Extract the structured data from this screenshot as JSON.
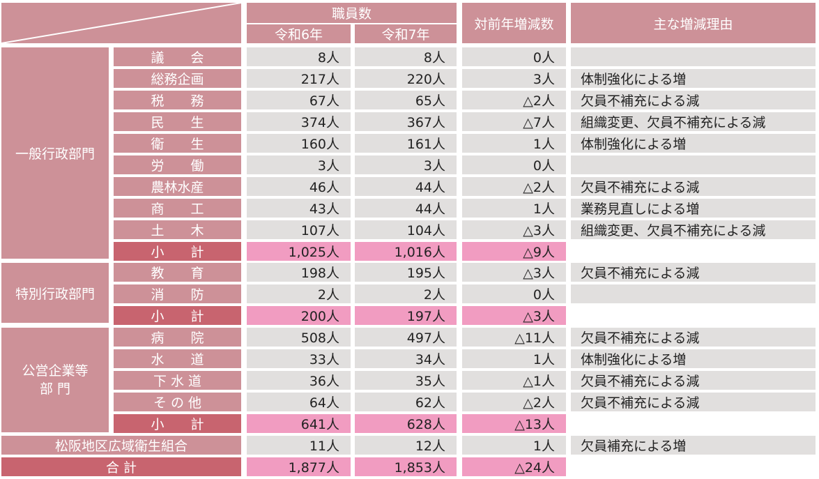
{
  "header": {
    "staff_count": "職員数",
    "r6": "令和6年",
    "r7": "令和7年",
    "diff": "対前年増減数",
    "reason": "主な増減理由"
  },
  "groups": {
    "general": "一般行政部門",
    "special": "特別行政部門",
    "enterprise_line1": "公営企業等",
    "enterprise_line2": "部 門"
  },
  "rows": [
    {
      "cat": "議　　会",
      "r6": "8人",
      "r7": "8人",
      "diff": "0人",
      "reason": ""
    },
    {
      "cat": "総務企画",
      "r6": "217人",
      "r7": "220人",
      "diff": "3人",
      "reason": "体制強化による増"
    },
    {
      "cat": "税　　務",
      "r6": "67人",
      "r7": "65人",
      "diff": "△2人",
      "reason": "欠員不補充による減"
    },
    {
      "cat": "民　　生",
      "r6": "374人",
      "r7": "367人",
      "diff": "△7人",
      "reason": "組織変更、欠員不補充による減"
    },
    {
      "cat": "衛　　生",
      "r6": "160人",
      "r7": "161人",
      "diff": "1人",
      "reason": "体制強化による増"
    },
    {
      "cat": "労　　働",
      "r6": "3人",
      "r7": "3人",
      "diff": "0人",
      "reason": ""
    },
    {
      "cat": "農林水産",
      "r6": "46人",
      "r7": "44人",
      "diff": "△2人",
      "reason": "欠員不補充による減"
    },
    {
      "cat": "商　　工",
      "r6": "43人",
      "r7": "44人",
      "diff": "1人",
      "reason": "業務見直しによる増"
    },
    {
      "cat": "土　　木",
      "r6": "107人",
      "r7": "104人",
      "diff": "△3人",
      "reason": "組織変更、欠員不補充による減"
    },
    {
      "cat": "小　　計",
      "r6": "1,025人",
      "r7": "1,016人",
      "diff": "△9人",
      "reason": ""
    },
    {
      "cat": "教　　育",
      "r6": "198人",
      "r7": "195人",
      "diff": "△3人",
      "reason": "欠員不補充による減"
    },
    {
      "cat": "消　　防",
      "r6": "2人",
      "r7": "2人",
      "diff": "0人",
      "reason": ""
    },
    {
      "cat": "小　　計",
      "r6": "200人",
      "r7": "197人",
      "diff": "△3人",
      "reason": ""
    },
    {
      "cat": "病　　院",
      "r6": "508人",
      "r7": "497人",
      "diff": "△11人",
      "reason": "欠員不補充による減"
    },
    {
      "cat": "水　　道",
      "r6": "33人",
      "r7": "34人",
      "diff": "1人",
      "reason": "体制強化による増"
    },
    {
      "cat": "下 水 道",
      "r6": "36人",
      "r7": "35人",
      "diff": "△1人",
      "reason": "欠員不補充による減"
    },
    {
      "cat": "そ の 他",
      "r6": "64人",
      "r7": "62人",
      "diff": "△2人",
      "reason": "欠員不補充による減"
    },
    {
      "cat": "小　　計",
      "r6": "641人",
      "r7": "628人",
      "diff": "△13人",
      "reason": ""
    },
    {
      "cat": "松阪地区広域衛生組合",
      "r6": "11人",
      "r7": "12人",
      "diff": "1人",
      "reason": "欠員補充による増"
    },
    {
      "cat": "合 計",
      "r6": "1,877人",
      "r7": "1,853人",
      "diff": "△24人",
      "reason": ""
    }
  ]
}
